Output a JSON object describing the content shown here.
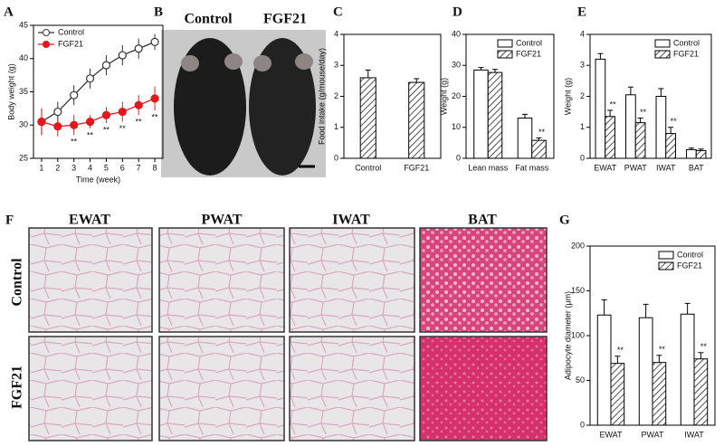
{
  "photo_panel": {
    "panel": "B",
    "labels": [
      "Control",
      "FGF21"
    ]
  },
  "histology": {
    "panel": "F",
    "columns": [
      "EWAT",
      "PWAT",
      "IWAT",
      "BAT"
    ],
    "rows": [
      "Control",
      "FGF21"
    ]
  },
  "chart_data": [
    {
      "type": "line",
      "panel": "A",
      "ylabel": "Body weight (g)",
      "xlabel": "Time (week)",
      "x": [
        1,
        2,
        3,
        4,
        5,
        6,
        7,
        8
      ],
      "xlim": [
        0.5,
        8.5
      ],
      "xticks": [
        1,
        2,
        3,
        4,
        5,
        6,
        7,
        8
      ],
      "ylim": [
        25,
        45
      ],
      "yticks": [
        25,
        30,
        35,
        40,
        45
      ],
      "legend": "top-left",
      "series": [
        {
          "name": "Control",
          "color": "#333333",
          "marker_fill": "#ffffff",
          "values": [
            30.5,
            32,
            34.5,
            37,
            39,
            40.5,
            41.5,
            42.5
          ],
          "errors": [
            2,
            1.5,
            1.5,
            1.5,
            1.5,
            1.5,
            1.5,
            1.2
          ]
        },
        {
          "name": "FGF21",
          "color": "#e8161b",
          "marker_fill": "#e8161b",
          "values": [
            30.5,
            29.8,
            30,
            30.5,
            31.5,
            32,
            33,
            34
          ],
          "errors": [
            2,
            1.5,
            1.5,
            1,
            1.2,
            1.5,
            1.5,
            1.8
          ],
          "significance": [
            null,
            null,
            "**",
            "**",
            "**",
            "**",
            "**",
            "**"
          ]
        }
      ]
    },
    {
      "type": "bar",
      "panel": "C",
      "ylabel": "Food intake (g/mouse/day)",
      "categories": [
        "Control",
        "FGF21"
      ],
      "ylim": [
        0,
        4
      ],
      "yticks": [
        0,
        1,
        2,
        3,
        4
      ],
      "series": [
        {
          "color": "#ffffff",
          "hatch": true,
          "values": [
            2.6,
            2.45
          ],
          "errors": [
            0.25,
            0.12
          ]
        }
      ]
    },
    {
      "type": "bar",
      "panel": "D",
      "ylabel": "Weight (g)",
      "categories": [
        "Lean mass",
        "Fat mass"
      ],
      "ylim": [
        0,
        40
      ],
      "yticks": [
        0,
        10,
        20,
        30,
        40
      ],
      "legend": "top-right",
      "series": [
        {
          "name": "Control",
          "color": "#ffffff",
          "hatch": false,
          "values": [
            28.5,
            13
          ],
          "errors": [
            0.8,
            1.2
          ]
        },
        {
          "name": "FGF21",
          "color": "#ffffff",
          "hatch": true,
          "values": [
            27.7,
            5.8
          ],
          "errors": [
            1,
            0.8
          ],
          "significance": [
            null,
            "**"
          ]
        }
      ]
    },
    {
      "type": "bar",
      "panel": "E",
      "ylabel": "Weight (g)",
      "categories": [
        "EWAT",
        "PWAT",
        "IWAT",
        "BAT"
      ],
      "ylim": [
        0,
        4
      ],
      "yticks": [
        0,
        1,
        2,
        3,
        4
      ],
      "legend": "top-right",
      "series": [
        {
          "name": "Control",
          "color": "#ffffff",
          "hatch": false,
          "values": [
            3.2,
            2.05,
            2.0,
            0.28
          ],
          "errors": [
            0.18,
            0.25,
            0.25,
            0.05
          ]
        },
        {
          "name": "FGF21",
          "color": "#ffffff",
          "hatch": true,
          "values": [
            1.35,
            1.15,
            0.8,
            0.25
          ],
          "errors": [
            0.2,
            0.15,
            0.2,
            0.05
          ],
          "significance": [
            "**",
            "**",
            "**",
            null
          ]
        }
      ]
    },
    {
      "type": "bar",
      "panel": "G",
      "ylabel": "Adipocyte diameter (μm)",
      "categories": [
        "EWAT",
        "PWAT",
        "IWAT"
      ],
      "ylim": [
        0,
        200
      ],
      "yticks": [
        0,
        50,
        100,
        150,
        200
      ],
      "legend": "top-right",
      "series": [
        {
          "name": "Control",
          "color": "#ffffff",
          "hatch": false,
          "values": [
            123,
            120,
            124
          ],
          "errors": [
            17,
            15,
            12
          ]
        },
        {
          "name": "FGF21",
          "color": "#ffffff",
          "hatch": true,
          "values": [
            69,
            70,
            74
          ],
          "errors": [
            8,
            8,
            7
          ],
          "significance": [
            "**",
            "**",
            "**"
          ]
        }
      ]
    }
  ]
}
